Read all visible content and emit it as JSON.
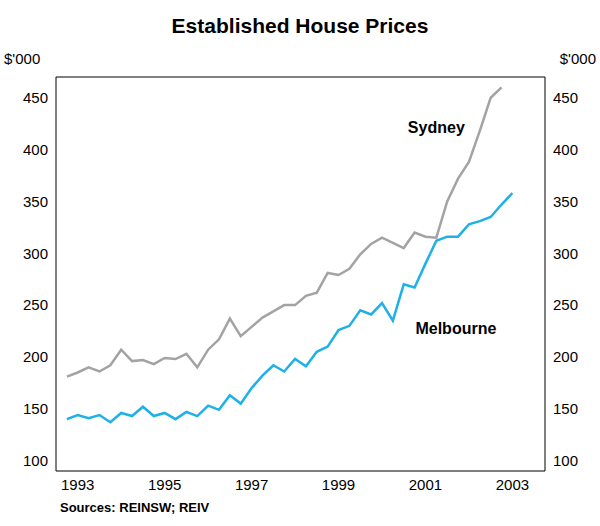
{
  "chart_data": {
    "type": "line",
    "title": "Established House Prices",
    "y_label": "$'000",
    "source": "Sources: REINSW; REIV",
    "x": [
      1993.25,
      1993.5,
      1993.75,
      1994,
      1994.25,
      1994.5,
      1994.75,
      1995,
      1995.25,
      1995.5,
      1995.75,
      1996,
      1996.25,
      1996.5,
      1996.75,
      1997,
      1997.25,
      1997.5,
      1997.75,
      1998,
      1998.25,
      1998.5,
      1998.75,
      1999,
      1999.25,
      1999.5,
      1999.75,
      2000,
      2000.25,
      2000.5,
      2000.75,
      2001,
      2001.25,
      2001.5,
      2001.75,
      2002,
      2002.25,
      2002.5,
      2002.75,
      2003,
      2003.25,
      2003.5
    ],
    "series": [
      {
        "name": "Sydney",
        "color": "#a3a3a3",
        "values": [
          181,
          185,
          190,
          186,
          192,
          207,
          196,
          197,
          193,
          199,
          198,
          203,
          190,
          207,
          217,
          237,
          220,
          229,
          238,
          244,
          250,
          250,
          259,
          262,
          281,
          279,
          285,
          299,
          309,
          315,
          310,
          305,
          320,
          316,
          315,
          350,
          372,
          388,
          418,
          450,
          460,
          null
        ]
      },
      {
        "name": "Melbourne",
        "color": "#1eb1e7",
        "values": [
          140,
          144,
          141,
          144,
          137,
          146,
          143,
          152,
          143,
          146,
          140,
          147,
          143,
          153,
          149,
          163,
          155,
          170,
          182,
          192,
          186,
          198,
          191,
          205,
          210,
          226,
          230,
          245,
          241,
          252,
          235,
          270,
          267,
          290,
          312,
          316,
          316,
          328,
          331,
          335,
          347,
          358
        ]
      }
    ],
    "annotations": [
      {
        "text": "Sydney",
        "x": 2001.75,
        "y": 421
      },
      {
        "text": "Melbourne",
        "x": 2002.2,
        "y": 228
      }
    ],
    "xlim": [
      1993,
      2004.25
    ],
    "xticks": [
      {
        "value": 1993.5,
        "label": "1993"
      },
      {
        "value": 1995.5,
        "label": "1995"
      },
      {
        "value": 1997.5,
        "label": "1997"
      },
      {
        "value": 1999.5,
        "label": "1999"
      },
      {
        "value": 2001.5,
        "label": "2001"
      },
      {
        "value": 2003.5,
        "label": "2003"
      }
    ],
    "ylim": [
      90,
      470
    ],
    "yticks": [
      100,
      150,
      200,
      250,
      300,
      350,
      400,
      450
    ],
    "grid": false
  }
}
